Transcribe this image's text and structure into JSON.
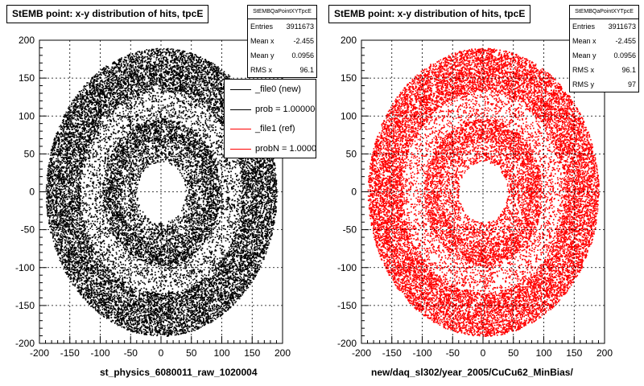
{
  "chart_data": [
    {
      "type": "scatter",
      "title": "StEMB point: x-y distribution of hits, tpcE",
      "xlabel": "st_physics_6080011_raw_1020004",
      "ylabel": "",
      "xlim": [
        -200,
        200
      ],
      "ylim": [
        -200,
        200
      ],
      "xticks": [
        "-200",
        "-150",
        "-100",
        "-50",
        "0",
        "50",
        "100",
        "150",
        "200"
      ],
      "yticks": [
        "200",
        "150",
        "100",
        "50",
        "0",
        "-50",
        "-100",
        "-150",
        "-200"
      ],
      "grid": true,
      "marker_color": "#000000",
      "distribution": {
        "inner_hole_radius": 40,
        "outer_radius": 190,
        "sparse_ring_radius": 115
      },
      "stats": {
        "name": "StEMBQaPointXYTpcE",
        "rows": [
          {
            "label": "Entries",
            "value": "3911673"
          },
          {
            "label": "Mean x",
            "value": "-2.455"
          },
          {
            "label": "Mean y",
            "value": "0.0956"
          },
          {
            "label": "RMS x",
            "value": "96.1"
          }
        ]
      },
      "legend": [
        {
          "label": "_file0 (new)",
          "color": "#000000"
        },
        {
          "label": "prob = 1.000000",
          "color": "#000000"
        },
        {
          "label": "_file1 (ref)",
          "color": "#ff0000"
        },
        {
          "label": "probN = 1.000000",
          "color": "#ff0000"
        }
      ]
    },
    {
      "type": "scatter",
      "title": "StEMB point: x-y distribution of hits, tpcE",
      "xlabel": "new/daq_sl302/year_2005/CuCu62_MinBias/",
      "ylabel": "",
      "xlim": [
        -200,
        200
      ],
      "ylim": [
        -200,
        200
      ],
      "xticks": [
        "-200",
        "-150",
        "-100",
        "-50",
        "0",
        "50",
        "100",
        "150",
        "200"
      ],
      "yticks": [
        "200",
        "150",
        "100",
        "50",
        "0",
        "-50",
        "-100",
        "-150",
        "-200"
      ],
      "grid": true,
      "marker_color": "#ff0000",
      "distribution": {
        "inner_hole_radius": 40,
        "outer_radius": 190,
        "sparse_ring_radius": 115
      },
      "stats": {
        "name": "StEMBQaPointXYTpcE",
        "rows": [
          {
            "label": "Entries",
            "value": "3911673"
          },
          {
            "label": "Mean x",
            "value": "-2.455"
          },
          {
            "label": "Mean y",
            "value": "0.0956"
          },
          {
            "label": "RMS x",
            "value": "96.1"
          },
          {
            "label": "RMS y",
            "value": "97"
          }
        ]
      }
    }
  ]
}
